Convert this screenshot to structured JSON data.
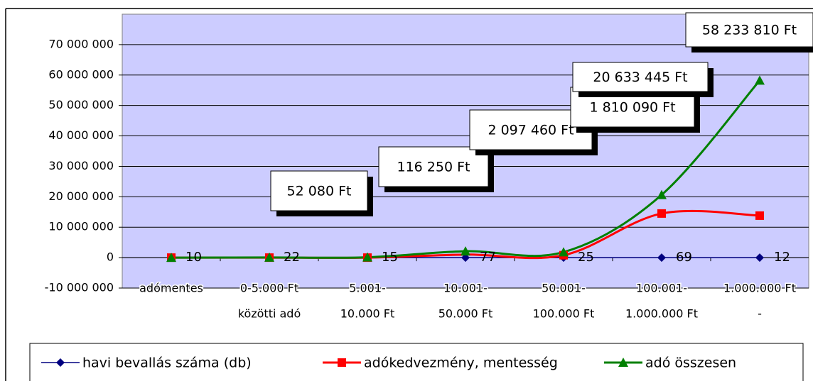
{
  "chart_data": {
    "type": "line",
    "categories": [
      [
        "adómentes"
      ],
      [
        "0-5.000 Ft",
        "közötti adó"
      ],
      [
        "5.001-",
        "10.000 Ft"
      ],
      [
        "10.001-",
        "50.000 Ft"
      ],
      [
        "50.001-",
        "100.000 Ft"
      ],
      [
        "100.001-",
        "1.000.000 Ft"
      ],
      [
        "1.000.000 Ft",
        "-"
      ]
    ],
    "series": [
      {
        "name": "havi bevallás száma (db)",
        "color": "#000080",
        "marker": "diamond",
        "values": [
          10,
          22,
          15,
          77,
          25,
          69,
          12
        ]
      },
      {
        "name": "adókedvezmény, mentesség",
        "color": "#ff0000",
        "marker": "square",
        "values": [
          0,
          0,
          0,
          1000000,
          800000,
          14500000,
          13800000
        ]
      },
      {
        "name": "adó összesen",
        "color": "#008000",
        "marker": "triangle",
        "values": [
          0,
          52080,
          116250,
          2097460,
          1810090,
          20633445,
          58233810
        ],
        "value_labels": [
          null,
          "52 080 Ft",
          "116 250 Ft",
          "2 097 460 Ft",
          "1 810 090 Ft",
          "20 633 445 Ft",
          "58 233 810 Ft"
        ]
      }
    ],
    "ylim": [
      -10000000,
      80000000
    ],
    "yticks": [
      {
        "value": -10000000,
        "label": "-10 000 000"
      },
      0,
      {
        "value": 10000000,
        "label": "10 000 000"
      },
      {
        "value": 20000000,
        "label": "20 000 000"
      },
      {
        "value": 30000000,
        "label": "30 000 000"
      },
      {
        "value": 40000000,
        "label": "40 000 000"
      },
      {
        "value": 50000000,
        "label": "50 000 000"
      },
      {
        "value": 60000000,
        "label": "60 000 000"
      },
      {
        "value": 70000000,
        "label": "70 000 000"
      }
    ],
    "grid": true,
    "legend": "bottom",
    "plot_background": "#ccccff"
  }
}
